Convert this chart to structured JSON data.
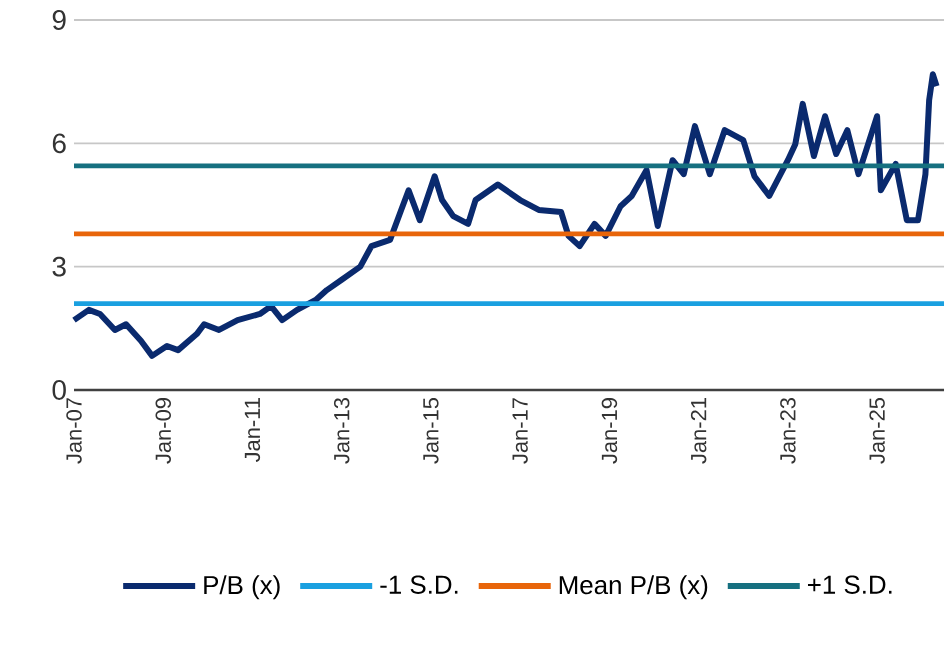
{
  "chart_data": {
    "type": "line",
    "xlim": [
      "2007-01",
      "2026-07"
    ],
    "ylim": [
      0,
      9
    ],
    "yticks": [
      0,
      3,
      6,
      9
    ],
    "xticks": [
      {
        "value": "2007-01",
        "label": "Jan-07"
      },
      {
        "value": "2009-01",
        "label": "Jan-09"
      },
      {
        "value": "2011-01",
        "label": "Jan-11"
      },
      {
        "value": "2013-01",
        "label": "Jan-13"
      },
      {
        "value": "2015-01",
        "label": "Jan-15"
      },
      {
        "value": "2017-01",
        "label": "Jan-17"
      },
      {
        "value": "2019-01",
        "label": "Jan-19"
      },
      {
        "value": "2021-01",
        "label": "Jan-21"
      },
      {
        "value": "2023-01",
        "label": "Jan-23"
      },
      {
        "value": "2025-01",
        "label": "Jan-25"
      }
    ],
    "grid": "y",
    "legend": "bottom",
    "marker": "none",
    "line_style": "solid",
    "series": [
      {
        "name": "P/B (x)",
        "color": "#0a2a6e",
        "x": [
          "2007-01",
          "2007-05",
          "2007-08",
          "2007-12",
          "2008-03",
          "2008-07",
          "2008-10",
          "2009-02",
          "2009-05",
          "2009-10",
          "2009-12",
          "2010-04",
          "2010-09",
          "2011-03",
          "2011-06",
          "2011-09",
          "2012-01",
          "2012-06",
          "2012-09",
          "2013-01",
          "2013-06",
          "2013-09",
          "2014-02",
          "2014-05",
          "2014-07",
          "2014-10",
          "2015-02",
          "2015-04",
          "2015-07",
          "2015-11",
          "2016-01",
          "2016-07",
          "2017-01",
          "2017-06",
          "2017-12",
          "2018-02",
          "2018-05",
          "2018-09",
          "2018-12",
          "2019-04",
          "2019-07",
          "2019-11",
          "2020-02",
          "2020-06",
          "2020-09",
          "2020-12",
          "2021-04",
          "2021-08",
          "2022-01",
          "2022-04",
          "2022-08",
          "2023-01",
          "2023-03",
          "2023-05",
          "2023-08",
          "2023-11",
          "2024-02",
          "2024-05",
          "2024-08",
          "2025-01",
          "2025-02",
          "2025-06",
          "2025-09",
          "2025-12",
          "2026-02",
          "2026-03",
          "2026-04",
          "2026-05"
        ],
        "values": [
          1.7,
          1.95,
          1.85,
          1.46,
          1.6,
          1.2,
          0.83,
          1.07,
          0.97,
          1.36,
          1.6,
          1.46,
          1.7,
          1.85,
          2.04,
          1.7,
          1.95,
          2.19,
          2.43,
          2.68,
          3.0,
          3.5,
          3.65,
          4.38,
          4.86,
          4.13,
          5.2,
          4.62,
          4.23,
          4.04,
          4.62,
          5.0,
          4.62,
          4.38,
          4.33,
          3.75,
          3.5,
          4.04,
          3.75,
          4.47,
          4.72,
          5.35,
          3.99,
          5.59,
          5.25,
          6.42,
          5.25,
          6.32,
          6.08,
          5.2,
          4.72,
          5.59,
          5.98,
          6.96,
          5.69,
          6.66,
          5.74,
          6.32,
          5.25,
          6.66,
          4.86,
          5.5,
          4.13,
          4.13,
          5.25,
          7.05,
          7.68,
          7.39
        ]
      },
      {
        "name": "-1 S.D.",
        "color": "#1aa0e0",
        "x": [
          "2007-01",
          "2026-07"
        ],
        "values": [
          2.1,
          2.1
        ]
      },
      {
        "name": "Mean P/B (x)",
        "color": "#e8650a",
        "x": [
          "2007-01",
          "2026-07"
        ],
        "values": [
          3.8,
          3.8
        ]
      },
      {
        "name": "+1 S.D.",
        "color": "#167080",
        "x": [
          "2007-01",
          "2026-07"
        ],
        "values": [
          5.45,
          5.45
        ]
      }
    ]
  }
}
